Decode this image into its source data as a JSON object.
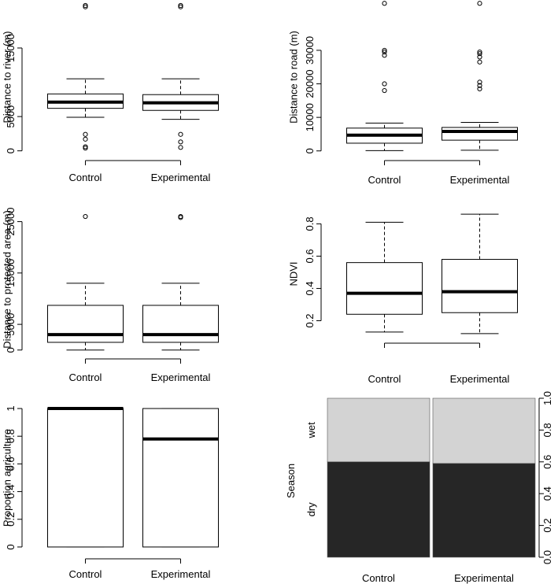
{
  "chart_data": [
    {
      "type": "boxplot",
      "categories": [
        "Control",
        "Experimental"
      ],
      "ylabel": "Distance to river (m)",
      "yticks": [
        0,
        5000,
        15000
      ],
      "ylim": [
        -500,
        22000
      ],
      "boxes": [
        {
          "name": "Control",
          "lower_whisker": 4900,
          "q1": 6200,
          "median": 7100,
          "q3": 8300,
          "upper_whisker": 10500,
          "outliers": [
            400,
            600,
            1700,
            2400,
            21000,
            21200
          ]
        },
        {
          "name": "Experimental",
          "lower_whisker": 4600,
          "q1": 5900,
          "median": 7000,
          "q3": 8200,
          "upper_whisker": 10500,
          "outliers": [
            500,
            1300,
            2400,
            21000,
            21200
          ]
        }
      ]
    },
    {
      "type": "boxplot",
      "categories": [
        "Control",
        "Experimental"
      ],
      "ylabel": "Distance to road (m)",
      "yticks": [
        0,
        10000,
        20000,
        30000
      ],
      "ylim": [
        -1000,
        45000
      ],
      "boxes": [
        {
          "name": "Control",
          "lower_whisker": 100,
          "q1": 2300,
          "median": 4700,
          "q3": 6800,
          "upper_whisker": 8300,
          "outliers": [
            18000,
            20000,
            28500,
            29500,
            30000,
            44000
          ]
        },
        {
          "name": "Experimental",
          "lower_whisker": 200,
          "q1": 3200,
          "median": 5800,
          "q3": 7000,
          "upper_whisker": 8500,
          "outliers": [
            18500,
            19500,
            20500,
            26500,
            28000,
            29000,
            29500,
            44000
          ]
        }
      ]
    },
    {
      "type": "boxplot",
      "categories": [
        "Control",
        "Experimental"
      ],
      "ylabel": "Distance to protected area (m)",
      "yticks": [
        0,
        5000,
        15000,
        25000
      ],
      "ylim": [
        -500,
        28000
      ],
      "boxes": [
        {
          "name": "Control",
          "lower_whisker": 0,
          "q1": 1500,
          "median": 3000,
          "q3": 8700,
          "upper_whisker": 13000,
          "outliers": [
            26000
          ]
        },
        {
          "name": "Experimental",
          "lower_whisker": 0,
          "q1": 1500,
          "median": 3000,
          "q3": 8700,
          "upper_whisker": 13000,
          "outliers": [
            25800,
            26000
          ]
        }
      ]
    },
    {
      "type": "boxplot",
      "categories": [
        "Control",
        "Experimental"
      ],
      "ylabel": "NDVI",
      "yticks": [
        0.2,
        0.4,
        0.6,
        0.8
      ],
      "ylim": [
        0.1,
        0.88
      ],
      "boxes": [
        {
          "name": "Control",
          "lower_whisker": 0.13,
          "q1": 0.24,
          "median": 0.37,
          "q3": 0.56,
          "upper_whisker": 0.81,
          "outliers": []
        },
        {
          "name": "Experimental",
          "lower_whisker": 0.12,
          "q1": 0.25,
          "median": 0.38,
          "q3": 0.58,
          "upper_whisker": 0.86,
          "outliers": []
        }
      ]
    },
    {
      "type": "boxplot",
      "categories": [
        "Control",
        "Experimental"
      ],
      "ylabel": "Proportion agriculture",
      "yticks": [
        0.0,
        0.2,
        0.4,
        0.6,
        0.8,
        1.0
      ],
      "ylim": [
        -0.04,
        1.04
      ],
      "boxes": [
        {
          "name": "Control",
          "lower_whisker": 0.0,
          "q1": 0.0,
          "median": 1.0,
          "q3": 1.0,
          "upper_whisker": 1.0,
          "outliers": []
        },
        {
          "name": "Experimental",
          "lower_whisker": 0.0,
          "q1": 0.0,
          "median": 0.78,
          "q3": 1.0,
          "upper_whisker": 1.0,
          "outliers": []
        }
      ]
    },
    {
      "type": "mosaic",
      "categories": [
        "Control",
        "Experimental"
      ],
      "ylabel": "Season",
      "levels": [
        "dry",
        "wet"
      ],
      "yticks": [
        0.0,
        0.2,
        0.4,
        0.6,
        0.8,
        1.0
      ],
      "dry_proportion": [
        0.6,
        0.59
      ],
      "colors": {
        "dry": "#262626",
        "wet": "#d3d3d3"
      }
    }
  ]
}
